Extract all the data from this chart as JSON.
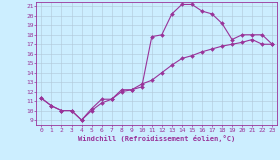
{
  "xlabel": "Windchill (Refroidissement éolien,°C)",
  "xlim": [
    -0.5,
    23.5
  ],
  "ylim": [
    8.5,
    21.5
  ],
  "xticks": [
    0,
    1,
    2,
    3,
    4,
    5,
    6,
    7,
    8,
    9,
    10,
    11,
    12,
    13,
    14,
    15,
    16,
    17,
    18,
    19,
    20,
    21,
    22,
    23
  ],
  "yticks": [
    9,
    10,
    11,
    12,
    13,
    14,
    15,
    16,
    17,
    18,
    19,
    20,
    21
  ],
  "line_color": "#993399",
  "bg_color": "#cceeff",
  "grid_color": "#b0c8d8",
  "line1_x": [
    0,
    1,
    2,
    3,
    4,
    5,
    6,
    7,
    8,
    9,
    10,
    11,
    12,
    13,
    14,
    15,
    16,
    17,
    18,
    19,
    20,
    21,
    22,
    23
  ],
  "line1_y": [
    11.3,
    10.5,
    10.0,
    10.0,
    9.0,
    10.0,
    10.8,
    11.2,
    12.2,
    12.2,
    12.5,
    17.8,
    18.0,
    20.2,
    21.2,
    21.2,
    20.5,
    20.2,
    19.2,
    17.5,
    18.0,
    18.0,
    18.0,
    17.0
  ],
  "line2_x": [
    0,
    1,
    2,
    3,
    4,
    5,
    6,
    7,
    8,
    9,
    10,
    11,
    12,
    13,
    14,
    15,
    16,
    17,
    18,
    19,
    20,
    21,
    22,
    23
  ],
  "line2_y": [
    11.3,
    10.5,
    10.0,
    10.0,
    9.0,
    10.2,
    11.2,
    11.2,
    12.0,
    12.2,
    12.8,
    13.2,
    14.0,
    14.8,
    15.5,
    15.8,
    16.2,
    16.5,
    16.8,
    17.0,
    17.2,
    17.5,
    17.0,
    17.0
  ],
  "marker": "D",
  "marker_size": 2.0,
  "linewidth": 0.8
}
